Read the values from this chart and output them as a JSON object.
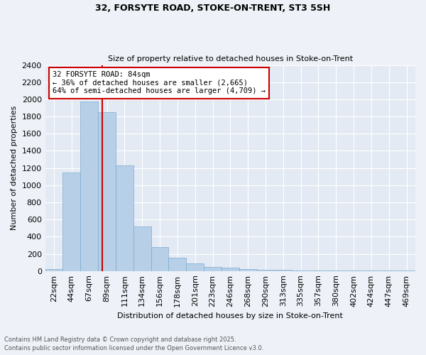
{
  "title1": "32, FORSYTE ROAD, STOKE-ON-TRENT, ST3 5SH",
  "title2": "Size of property relative to detached houses in Stoke-on-Trent",
  "xlabel": "Distribution of detached houses by size in Stoke-on-Trent",
  "ylabel": "Number of detached properties",
  "categories": [
    "22sqm",
    "44sqm",
    "67sqm",
    "89sqm",
    "111sqm",
    "134sqm",
    "156sqm",
    "178sqm",
    "201sqm",
    "223sqm",
    "246sqm",
    "268sqm",
    "290sqm",
    "313sqm",
    "335sqm",
    "357sqm",
    "380sqm",
    "402sqm",
    "424sqm",
    "447sqm",
    "469sqm"
  ],
  "values": [
    25,
    1150,
    1975,
    1850,
    1230,
    520,
    275,
    155,
    85,
    45,
    35,
    20,
    15,
    10,
    5,
    5,
    5,
    5,
    5,
    5,
    5
  ],
  "bar_color": "#b8cfe8",
  "bar_edge_color": "#7aaad0",
  "red_line_color": "#cc0000",
  "annotation_box_color": "#ffffff",
  "annotation_box_edge": "#cc0000",
  "property_label": "32 FORSYTE ROAD: 84sqm",
  "annotation_line1": "← 36% of detached houses are smaller (2,665)",
  "annotation_line2": "64% of semi-detached houses are larger (4,709) →",
  "ylim": [
    0,
    2400
  ],
  "yticks": [
    0,
    200,
    400,
    600,
    800,
    1000,
    1200,
    1400,
    1600,
    1800,
    2000,
    2200,
    2400
  ],
  "footnote1": "Contains HM Land Registry data © Crown copyright and database right 2025.",
  "footnote2": "Contains public sector information licensed under the Open Government Licence v3.0.",
  "bg_color": "#eef2f8",
  "plot_bg_color": "#e4eaf4"
}
